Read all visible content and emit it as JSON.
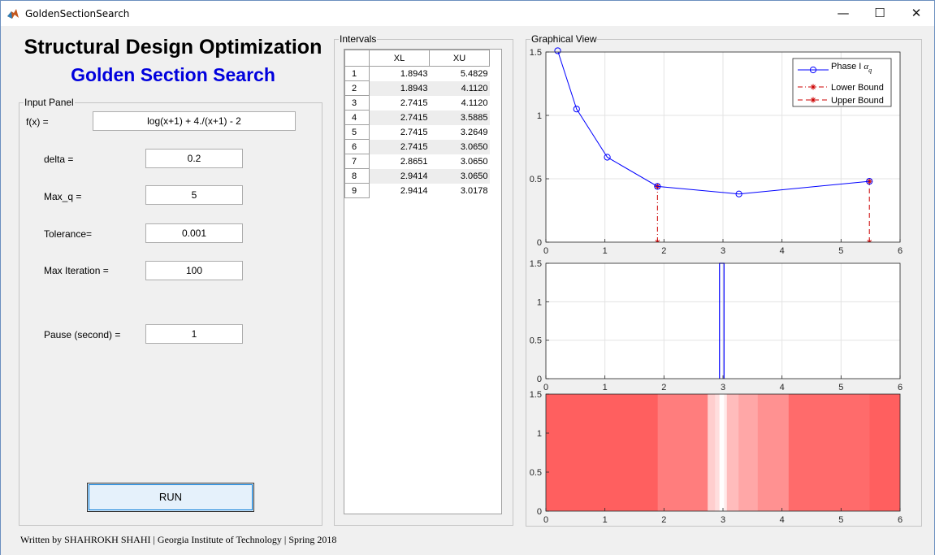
{
  "window": {
    "title": "GoldenSectionSearch",
    "min": "—",
    "max": "☐",
    "close": "✕"
  },
  "header": {
    "title": "Structural Design Optimization",
    "subtitle": "Golden Section Search"
  },
  "input_panel": {
    "legend": "Input Panel",
    "fx_label": "f(x) =",
    "fx_value": "log(x+1)  +  4./(x+1)  -  2",
    "delta_label": "delta =",
    "delta_value": "0.2",
    "maxq_label": "Max_q =",
    "maxq_value": "5",
    "tol_label": "Tolerance=",
    "tol_value": "0.001",
    "maxiter_label": "Max Iteration =",
    "maxiter_value": "100",
    "pause_label": "Pause (second) =",
    "pause_value": "1",
    "run_label": "RUN"
  },
  "intervals": {
    "legend": "Intervals",
    "columns": [
      "XL",
      "XU"
    ],
    "rows": [
      [
        "1",
        "1.8943",
        "5.4829"
      ],
      [
        "2",
        "1.8943",
        "4.1120"
      ],
      [
        "3",
        "2.7415",
        "4.1120"
      ],
      [
        "4",
        "2.7415",
        "3.5885"
      ],
      [
        "5",
        "2.7415",
        "3.2649"
      ],
      [
        "6",
        "2.7415",
        "3.0650"
      ],
      [
        "7",
        "2.8651",
        "3.0650"
      ],
      [
        "8",
        "2.9414",
        "3.0650"
      ],
      [
        "9",
        "2.9414",
        "3.0178"
      ]
    ]
  },
  "graph_panel": {
    "legend": "Graphical View"
  },
  "chart_data": [
    {
      "type": "line",
      "xlim": [
        0,
        6
      ],
      "ylim": [
        0,
        1.5
      ],
      "xticks": [
        "0",
        "1",
        "2",
        "3",
        "4",
        "5",
        "6"
      ],
      "yticks": [
        "0",
        "0.5",
        "1",
        "1.5"
      ],
      "grid": true,
      "legend_position": "top-right",
      "series": [
        {
          "name": "Phase I α_q",
          "style": "line-circle",
          "color": "#0000ff",
          "x": [
            0.2,
            0.52,
            1.04,
            1.89,
            3.27,
            5.48
          ],
          "y": [
            1.51,
            1.05,
            0.67,
            0.44,
            0.38,
            0.48
          ]
        },
        {
          "name": "Lower Bound",
          "style": "dashdot-star",
          "color": "#cc0000",
          "x": [
            1.89,
            1.89
          ],
          "y": [
            0,
            0.44
          ]
        },
        {
          "name": "Upper Bound",
          "style": "dash-star",
          "color": "#cc0000",
          "x": [
            5.48,
            5.48
          ],
          "y": [
            0,
            0.48
          ]
        }
      ]
    },
    {
      "type": "line",
      "xlim": [
        0,
        6
      ],
      "ylim": [
        0,
        1.5
      ],
      "xticks": [
        "0",
        "1",
        "2",
        "3",
        "4",
        "5",
        "6"
      ],
      "yticks": [
        "0",
        "0.5",
        "1",
        "1.5"
      ],
      "grid": true,
      "series": [
        {
          "name": "",
          "color": "#0000ff",
          "x": [
            2.9414,
            2.9414,
            3.0178,
            3.0178
          ],
          "y": [
            0,
            1.5,
            1.5,
            0
          ]
        }
      ]
    },
    {
      "type": "heatmap",
      "xlim": [
        0,
        6
      ],
      "ylim": [
        0,
        1.5
      ],
      "xticks": [
        "0",
        "1",
        "2",
        "3",
        "4",
        "5",
        "6"
      ],
      "yticks": [
        "0",
        "0.5",
        "1",
        "1.5"
      ],
      "base_color": "#ff0000",
      "intervals": [
        [
          1.8943,
          5.4829
        ],
        [
          1.8943,
          4.112
        ],
        [
          2.7415,
          4.112
        ],
        [
          2.7415,
          3.5885
        ],
        [
          2.7415,
          3.2649
        ],
        [
          2.7415,
          3.065
        ],
        [
          2.8651,
          3.065
        ],
        [
          2.9414,
          3.065
        ],
        [
          2.9414,
          3.0178
        ]
      ]
    }
  ],
  "footer": {
    "credit": "Written by SHAHROKH SHAHI | Georgia Institute of Technology | Spring 2018"
  }
}
